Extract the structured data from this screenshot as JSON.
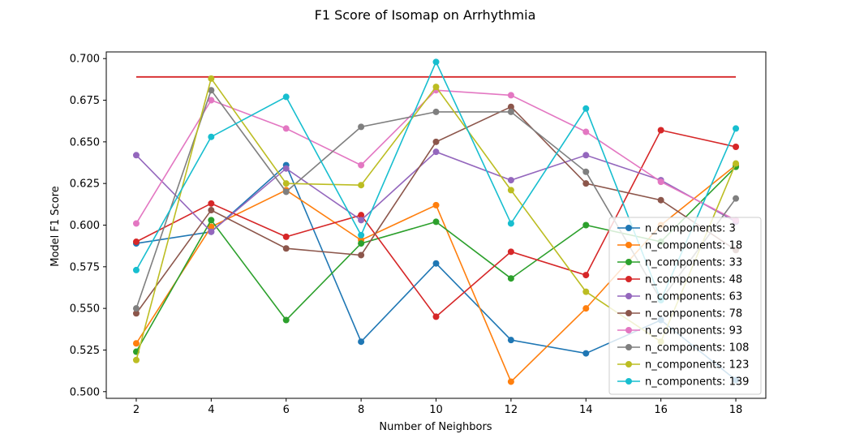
{
  "chart_data": {
    "type": "line",
    "title": "F1 Score of Isomap on Arrhythmia",
    "xlabel": "Number of Neighbors",
    "ylabel": "Model F1 Score",
    "x": [
      2,
      4,
      6,
      8,
      10,
      12,
      14,
      16,
      18
    ],
    "xticks": [
      "2",
      "4",
      "6",
      "8",
      "10",
      "12",
      "14",
      "16",
      "18"
    ],
    "yticks": [
      "0.500",
      "0.525",
      "0.550",
      "0.575",
      "0.600",
      "0.625",
      "0.650",
      "0.675",
      "0.700"
    ],
    "xlim": [
      1.2,
      18.8
    ],
    "ylim": [
      0.496,
      0.704
    ],
    "grid": false,
    "legend_position": "lower-right",
    "reference_line": {
      "y": 0.689,
      "x_range": [
        2,
        18
      ],
      "color": "#d62728"
    },
    "series": [
      {
        "name": "n_components: 3",
        "color": "#1f77b4",
        "values": [
          0.589,
          0.596,
          0.636,
          0.53,
          0.577,
          0.531,
          0.523,
          0.543,
          0.507
        ]
      },
      {
        "name": "n_components: 18",
        "color": "#ff7f0e",
        "values": [
          0.529,
          0.599,
          0.621,
          0.591,
          0.612,
          0.506,
          0.55,
          0.6,
          0.636
        ]
      },
      {
        "name": "n_components: 33",
        "color": "#2ca02c",
        "values": [
          0.524,
          0.603,
          0.543,
          0.589,
          0.602,
          0.568,
          0.6,
          0.59,
          0.635
        ]
      },
      {
        "name": "n_components: 48",
        "color": "#d62728",
        "values": [
          0.59,
          0.613,
          0.593,
          0.606,
          0.545,
          0.584,
          0.57,
          0.657,
          0.647
        ]
      },
      {
        "name": "n_components: 63",
        "color": "#9467bd",
        "values": [
          0.642,
          0.596,
          0.634,
          0.603,
          0.644,
          0.627,
          0.642,
          0.627,
          0.602
        ]
      },
      {
        "name": "n_components: 78",
        "color": "#8c564b",
        "values": [
          0.547,
          0.609,
          0.586,
          0.582,
          0.65,
          0.671,
          0.625,
          0.615,
          0.585
        ]
      },
      {
        "name": "n_components: 93",
        "color": "#e377c2",
        "values": [
          0.601,
          0.675,
          0.658,
          0.636,
          0.681,
          0.678,
          0.656,
          0.626,
          0.603
        ]
      },
      {
        "name": "n_components: 108",
        "color": "#7f7f7f",
        "values": [
          0.55,
          0.681,
          0.62,
          0.659,
          0.668,
          0.668,
          0.632,
          0.555,
          0.616
        ]
      },
      {
        "name": "n_components: 123",
        "color": "#bcbd22",
        "values": [
          0.519,
          0.688,
          0.625,
          0.624,
          0.683,
          0.621,
          0.56,
          0.53,
          0.637
        ]
      },
      {
        "name": "n_components: 139",
        "color": "#17becf",
        "values": [
          0.573,
          0.653,
          0.677,
          0.594,
          0.698,
          0.601,
          0.67,
          0.555,
          0.658
        ]
      }
    ]
  }
}
